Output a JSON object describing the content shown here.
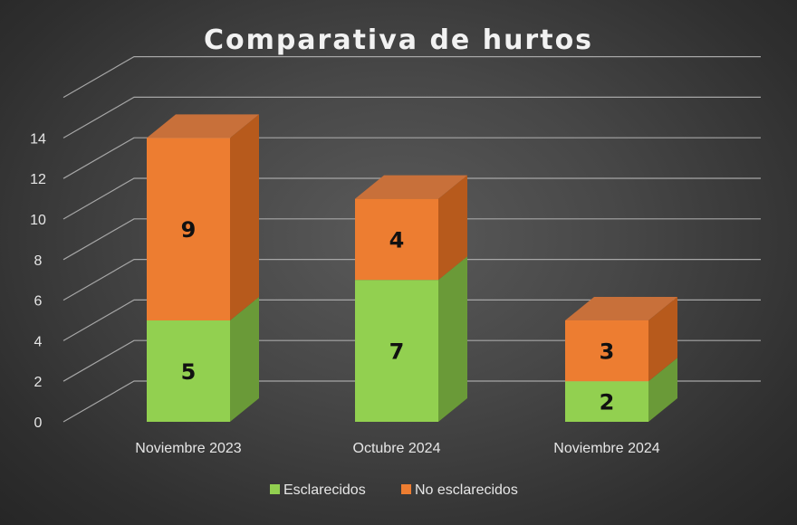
{
  "chart_data": {
    "type": "bar",
    "stacked": true,
    "style": "3d-column",
    "title": "Comparativa de hurtos",
    "categories": [
      "Noviembre 2023",
      "Octubre 2024",
      "Noviembre 2024"
    ],
    "series": [
      {
        "name": "Esclarecidos",
        "values": [
          5,
          7,
          2
        ],
        "color": "#92d050",
        "side_color": "#6a9a38",
        "top_color": "#a8dc72"
      },
      {
        "name": "No esclarecidos",
        "values": [
          9,
          4,
          3
        ],
        "color": "#ed7d31",
        "side_color": "#b75a1c",
        "top_color": "#c8703a"
      }
    ],
    "yticks": [
      0,
      2,
      4,
      6,
      8,
      10,
      12,
      14
    ],
    "ylim": [
      0,
      16
    ],
    "grid": true,
    "data_labels": true,
    "legend_position": "bottom"
  },
  "colors": {
    "background": "#3c3c3c",
    "text": "#e6e6e6",
    "gridline": "#a6a6a6"
  }
}
